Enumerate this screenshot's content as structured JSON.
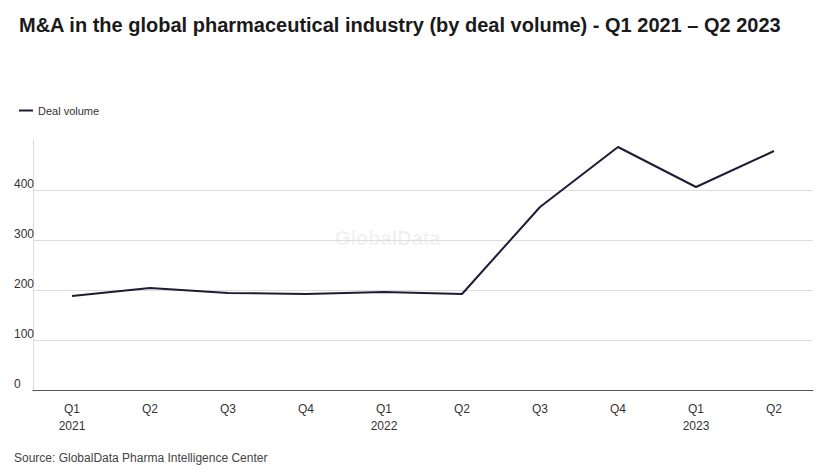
{
  "chart_data": {
    "type": "line",
    "title": "M&A in the global pharmaceutical industry (by deal volume) - Q1 2021 – Q2 2023",
    "source": "Source: GlobalData Pharma Intelligence Center",
    "watermark": "GlobalData",
    "legend": "top-left",
    "categories": [
      "Q1\n2021",
      "Q2",
      "Q3",
      "Q4",
      "Q1\n2022",
      "Q2",
      "Q3",
      "Q4",
      "Q1\n2023",
      "Q2"
    ],
    "series": [
      {
        "name": "Deal volume",
        "color": "#1e1b39",
        "values": [
          188,
          204,
          194,
          192,
          196,
          192,
          366,
          486,
          406,
          478
        ]
      }
    ],
    "ylim": [
      0,
      500
    ],
    "yticks": [
      0,
      100,
      200,
      300,
      400
    ],
    "grid": true
  }
}
